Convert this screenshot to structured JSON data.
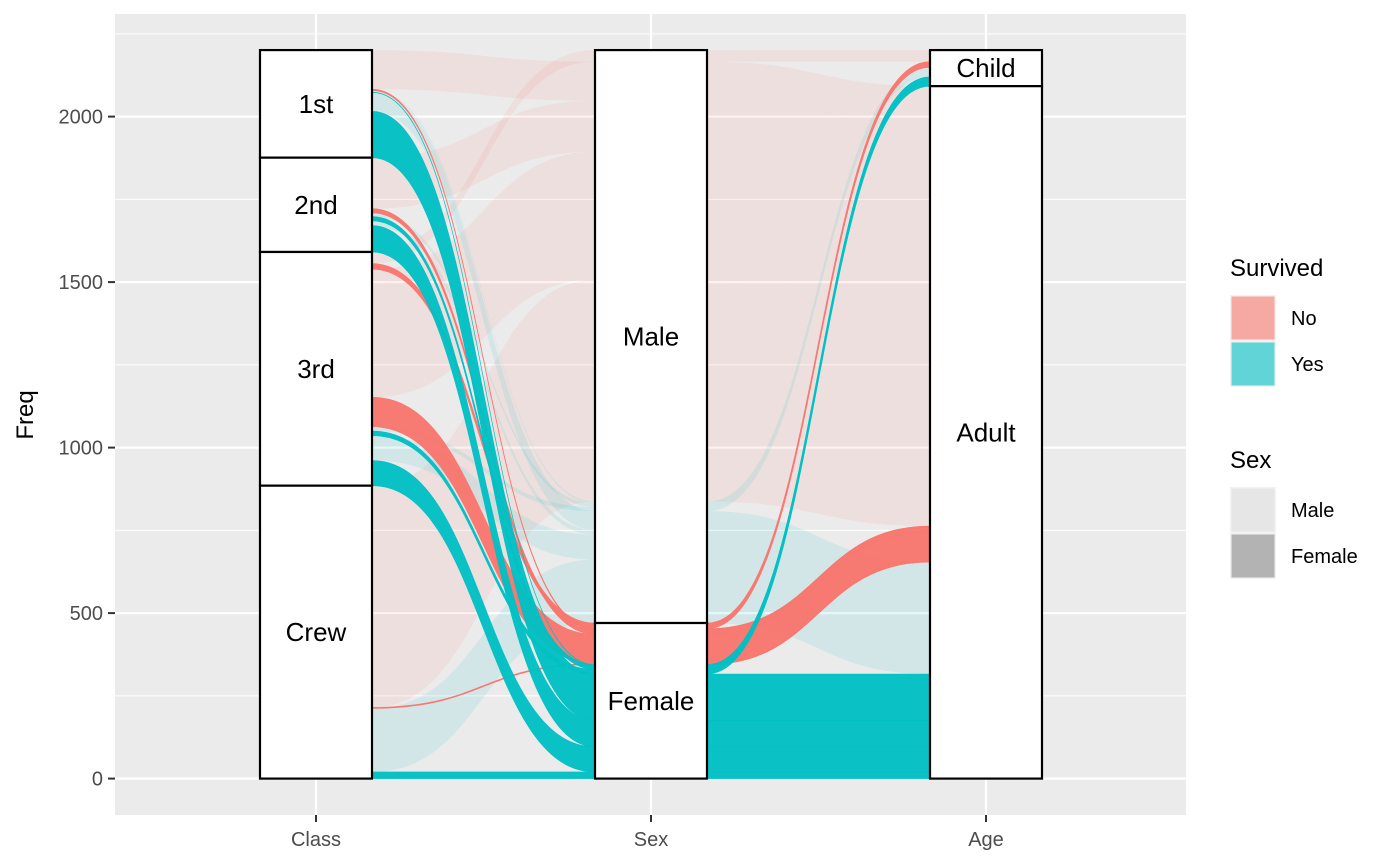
{
  "chart_data": {
    "type": "alluvial",
    "ylabel": "Freq",
    "xlabel": "",
    "ylim": [
      -110,
      2310
    ],
    "y_ticks": [
      0,
      500,
      1000,
      1500,
      2000
    ],
    "y_tick_labels": [
      "0",
      "500",
      "1000",
      "1500",
      "2000"
    ],
    "axes": [
      "Class",
      "Sex",
      "Age"
    ],
    "fill_by": "Survived",
    "alpha_by": "Sex",
    "grid": true,
    "legend_placement": "right",
    "colors": {
      "No": "#F8766D",
      "Yes": "#00BFC4",
      "panel": "#EBEBEB",
      "grid": "#FFFFFF"
    },
    "strata": {
      "Class": [
        {
          "label": "1st",
          "value": 325
        },
        {
          "label": "2nd",
          "value": 285
        },
        {
          "label": "3rd",
          "value": 706
        },
        {
          "label": "Crew",
          "value": 885
        }
      ],
      "Sex": [
        {
          "label": "Male",
          "value": 1731
        },
        {
          "label": "Female",
          "value": 470
        }
      ],
      "Age": [
        {
          "label": "Child",
          "value": 109
        },
        {
          "label": "Adult",
          "value": 2092
        }
      ]
    },
    "flows": [
      {
        "Class": "1st",
        "Sex": "Male",
        "Age": "Child",
        "Survived": "No",
        "Freq": 0
      },
      {
        "Class": "2nd",
        "Sex": "Male",
        "Age": "Child",
        "Survived": "No",
        "Freq": 0
      },
      {
        "Class": "3rd",
        "Sex": "Male",
        "Age": "Child",
        "Survived": "No",
        "Freq": 35
      },
      {
        "Class": "Crew",
        "Sex": "Male",
        "Age": "Child",
        "Survived": "No",
        "Freq": 0
      },
      {
        "Class": "1st",
        "Sex": "Female",
        "Age": "Child",
        "Survived": "No",
        "Freq": 0
      },
      {
        "Class": "2nd",
        "Sex": "Female",
        "Age": "Child",
        "Survived": "No",
        "Freq": 0
      },
      {
        "Class": "3rd",
        "Sex": "Female",
        "Age": "Child",
        "Survived": "No",
        "Freq": 17
      },
      {
        "Class": "Crew",
        "Sex": "Female",
        "Age": "Child",
        "Survived": "No",
        "Freq": 0
      },
      {
        "Class": "1st",
        "Sex": "Male",
        "Age": "Adult",
        "Survived": "No",
        "Freq": 118
      },
      {
        "Class": "2nd",
        "Sex": "Male",
        "Age": "Adult",
        "Survived": "No",
        "Freq": 154
      },
      {
        "Class": "3rd",
        "Sex": "Male",
        "Age": "Adult",
        "Survived": "No",
        "Freq": 387
      },
      {
        "Class": "Crew",
        "Sex": "Male",
        "Age": "Adult",
        "Survived": "No",
        "Freq": 670
      },
      {
        "Class": "1st",
        "Sex": "Female",
        "Age": "Adult",
        "Survived": "No",
        "Freq": 4
      },
      {
        "Class": "2nd",
        "Sex": "Female",
        "Age": "Adult",
        "Survived": "No",
        "Freq": 13
      },
      {
        "Class": "3rd",
        "Sex": "Female",
        "Age": "Adult",
        "Survived": "No",
        "Freq": 89
      },
      {
        "Class": "Crew",
        "Sex": "Female",
        "Age": "Adult",
        "Survived": "No",
        "Freq": 3
      },
      {
        "Class": "1st",
        "Sex": "Male",
        "Age": "Child",
        "Survived": "Yes",
        "Freq": 5
      },
      {
        "Class": "2nd",
        "Sex": "Male",
        "Age": "Child",
        "Survived": "Yes",
        "Freq": 11
      },
      {
        "Class": "3rd",
        "Sex": "Male",
        "Age": "Child",
        "Survived": "Yes",
        "Freq": 13
      },
      {
        "Class": "Crew",
        "Sex": "Male",
        "Age": "Child",
        "Survived": "Yes",
        "Freq": 0
      },
      {
        "Class": "1st",
        "Sex": "Female",
        "Age": "Child",
        "Survived": "Yes",
        "Freq": 1
      },
      {
        "Class": "2nd",
        "Sex": "Female",
        "Age": "Child",
        "Survived": "Yes",
        "Freq": 13
      },
      {
        "Class": "3rd",
        "Sex": "Female",
        "Age": "Child",
        "Survived": "Yes",
        "Freq": 14
      },
      {
        "Class": "Crew",
        "Sex": "Female",
        "Age": "Child",
        "Survived": "Yes",
        "Freq": 0
      },
      {
        "Class": "1st",
        "Sex": "Male",
        "Age": "Adult",
        "Survived": "Yes",
        "Freq": 57
      },
      {
        "Class": "2nd",
        "Sex": "Male",
        "Age": "Adult",
        "Survived": "Yes",
        "Freq": 14
      },
      {
        "Class": "3rd",
        "Sex": "Male",
        "Age": "Adult",
        "Survived": "Yes",
        "Freq": 75
      },
      {
        "Class": "Crew",
        "Sex": "Male",
        "Age": "Adult",
        "Survived": "Yes",
        "Freq": 192
      },
      {
        "Class": "1st",
        "Sex": "Female",
        "Age": "Adult",
        "Survived": "Yes",
        "Freq": 140
      },
      {
        "Class": "2nd",
        "Sex": "Female",
        "Age": "Adult",
        "Survived": "Yes",
        "Freq": 80
      },
      {
        "Class": "3rd",
        "Sex": "Female",
        "Age": "Adult",
        "Survived": "Yes",
        "Freq": 76
      },
      {
        "Class": "Crew",
        "Sex": "Female",
        "Age": "Adult",
        "Survived": "Yes",
        "Freq": 20
      }
    ],
    "legend": [
      {
        "title": "Survived",
        "items": [
          {
            "label": "No",
            "color": "#F8766D"
          },
          {
            "label": "Yes",
            "color": "#00BFC4"
          }
        ]
      },
      {
        "title": "Sex",
        "items": [
          {
            "label": "Male",
            "color": "#E6E6E6"
          },
          {
            "label": "Female",
            "color": "#B3B3B3"
          }
        ]
      }
    ]
  }
}
